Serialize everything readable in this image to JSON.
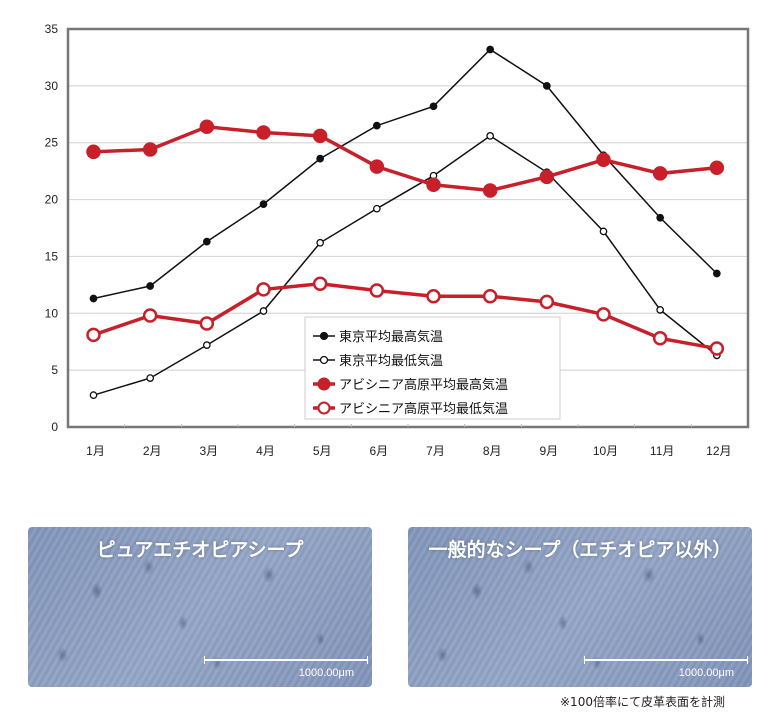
{
  "chart_data": {
    "type": "line",
    "categories": [
      "1月",
      "2月",
      "3月",
      "4月",
      "5月",
      "6月",
      "7月",
      "8月",
      "9月",
      "10月",
      "11月",
      "12月"
    ],
    "ylim": [
      0,
      35
    ],
    "yticks": [
      "0",
      "5",
      "10",
      "15",
      "20",
      "25",
      "30",
      "35"
    ],
    "grid": true,
    "legend_position": "bottom-center",
    "series": [
      {
        "name": "東京平均最高気温",
        "color": "#111111",
        "marker": "filled-small",
        "values": [
          11.3,
          12.4,
          16.3,
          19.6,
          23.6,
          26.5,
          28.2,
          33.2,
          30.0,
          23.9,
          18.4,
          13.5
        ]
      },
      {
        "name": "東京平均最低気温",
        "color": "#111111",
        "marker": "open-small",
        "values": [
          2.8,
          4.3,
          7.2,
          10.2,
          16.2,
          19.2,
          22.1,
          25.6,
          22.4,
          17.2,
          10.3,
          6.3
        ]
      },
      {
        "name": "アビシニア高原平均最高気温",
        "color": "#c8202a",
        "marker": "filled-large",
        "values": [
          24.2,
          24.4,
          26.4,
          25.9,
          25.6,
          22.9,
          21.3,
          20.8,
          22.0,
          23.5,
          22.3,
          22.8
        ]
      },
      {
        "name": "アビシニア高原平均最低気温",
        "color": "#c8202a",
        "marker": "open-large",
        "values": [
          8.1,
          9.8,
          9.1,
          12.1,
          12.6,
          12.0,
          11.5,
          11.5,
          11.0,
          9.9,
          7.8,
          6.9
        ]
      }
    ]
  },
  "photos": [
    {
      "title": "ピュアエチオピアシープ",
      "scale": "1000.00μm"
    },
    {
      "title": "一般的なシープ（エチオピア以外）",
      "scale": "1000.00μm"
    }
  ],
  "footnote": "※100倍率にて皮革表面を計測"
}
